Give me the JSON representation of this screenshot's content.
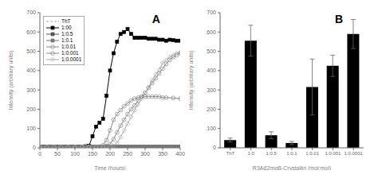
{
  "chart_data": [
    {
      "type": "line",
      "title": "A",
      "xlabel": "Time (hours)",
      "ylabel": "Intensity (arbitrary units)",
      "xlim": [
        0,
        400
      ],
      "ylim": [
        0,
        700
      ],
      "xticks": [
        0,
        50,
        100,
        150,
        200,
        250,
        300,
        350,
        400
      ],
      "yticks": [
        0,
        100,
        200,
        300,
        400,
        500,
        600,
        700
      ],
      "grid": false,
      "legend": "upper left",
      "series": [
        {
          "name": "ThT",
          "color": "#aaaaaa",
          "marker": "none",
          "line_style": "dashed",
          "x": [
            0,
            20,
            40,
            60,
            80,
            100,
            120,
            140,
            160,
            180,
            200,
            220,
            240,
            260,
            280,
            300,
            320,
            340,
            360,
            380,
            400
          ],
          "values": [
            5,
            5,
            5,
            5,
            5,
            5,
            5,
            5,
            5,
            5,
            5,
            5,
            5,
            5,
            5,
            5,
            5,
            5,
            5,
            5,
            5
          ]
        },
        {
          "name": "1:00",
          "color": "#000000",
          "marker": "square",
          "line_style": "solid",
          "x": [
            0,
            10,
            20,
            30,
            40,
            50,
            60,
            70,
            80,
            90,
            100,
            110,
            120,
            130,
            140,
            150,
            160,
            170,
            180,
            190,
            200,
            210,
            220,
            230,
            240,
            250,
            260,
            270,
            280,
            290,
            300,
            310,
            320,
            330,
            340,
            350,
            360,
            370,
            380,
            390,
            400
          ],
          "values": [
            5,
            5,
            5,
            5,
            5,
            5,
            5,
            5,
            5,
            5,
            5,
            5,
            5,
            8,
            10,
            60,
            110,
            130,
            150,
            270,
            400,
            490,
            550,
            590,
            600,
            615,
            590,
            570,
            570,
            570,
            570,
            565,
            565,
            565,
            560,
            560,
            555,
            560,
            558,
            555,
            555
          ]
        },
        {
          "name": "1:0.5",
          "color": "#555555",
          "marker": "square",
          "line_style": "solid",
          "x": [
            0,
            10,
            20,
            30,
            40,
            50,
            60,
            70,
            80,
            90,
            100,
            110,
            120,
            130,
            140,
            150,
            160,
            170,
            180,
            190,
            200,
            210,
            220,
            230,
            240,
            250,
            260,
            270,
            280,
            290,
            300,
            310,
            320,
            330,
            340,
            350,
            360,
            370,
            380,
            390,
            400
          ],
          "values": [
            5,
            5,
            5,
            5,
            5,
            5,
            5,
            5,
            5,
            5,
            5,
            5,
            5,
            5,
            5,
            5,
            5,
            5,
            5,
            5,
            5,
            5,
            5,
            5,
            5,
            5,
            5,
            5,
            5,
            5,
            5,
            5,
            5,
            5,
            5,
            5,
            5,
            5,
            5,
            5,
            5
          ]
        },
        {
          "name": "1:0.1",
          "color": "#777777",
          "marker": "square",
          "line_style": "solid",
          "x": [
            0,
            10,
            20,
            30,
            40,
            50,
            60,
            70,
            80,
            90,
            100,
            110,
            120,
            130,
            140,
            150,
            160,
            170,
            180,
            190,
            200,
            210,
            220,
            230,
            240,
            250,
            260,
            270,
            280,
            290,
            300,
            310,
            320,
            330,
            340,
            350,
            360,
            370,
            380,
            390,
            400
          ],
          "values": [
            5,
            5,
            5,
            5,
            5,
            5,
            5,
            5,
            5,
            5,
            5,
            5,
            5,
            5,
            5,
            5,
            5,
            5,
            5,
            5,
            5,
            5,
            5,
            5,
            5,
            5,
            5,
            5,
            5,
            5,
            5,
            5,
            5,
            5,
            5,
            5,
            5,
            5,
            5,
            5,
            5
          ]
        },
        {
          "name": "1:0.01",
          "color": "#888888",
          "marker": "circle_open",
          "line_style": "solid",
          "x": [
            0,
            20,
            40,
            60,
            80,
            100,
            120,
            140,
            150,
            160,
            170,
            180,
            190,
            200,
            210,
            220,
            230,
            240,
            250,
            260,
            270,
            280,
            290,
            300,
            310,
            320,
            330,
            340,
            350,
            360,
            380,
            400
          ],
          "values": [
            5,
            5,
            5,
            5,
            5,
            5,
            5,
            5,
            5,
            5,
            5,
            15,
            40,
            90,
            145,
            175,
            195,
            215,
            230,
            245,
            255,
            260,
            265,
            265,
            265,
            265,
            265,
            265,
            260,
            260,
            258,
            255
          ]
        },
        {
          "name": "1:0.001",
          "color": "#888888",
          "marker": "circle_open",
          "line_style": "solid",
          "x": [
            0,
            20,
            40,
            60,
            80,
            100,
            120,
            140,
            160,
            180,
            190,
            200,
            210,
            220,
            230,
            240,
            250,
            260,
            270,
            280,
            290,
            300,
            310,
            320,
            330,
            340,
            350,
            360,
            370,
            380,
            390,
            400
          ],
          "values": [
            5,
            5,
            5,
            5,
            5,
            5,
            5,
            5,
            5,
            5,
            10,
            20,
            45,
            80,
            115,
            145,
            175,
            200,
            220,
            245,
            265,
            285,
            310,
            335,
            360,
            385,
            410,
            435,
            455,
            470,
            480,
            490
          ]
        },
        {
          "name": "1:0.0001",
          "color": "#aaaaaa",
          "marker": "diamond_open",
          "line_style": "solid",
          "x": [
            0,
            20,
            40,
            60,
            80,
            100,
            120,
            140,
            160,
            180,
            200,
            210,
            220,
            230,
            240,
            250,
            260,
            270,
            280,
            290,
            300,
            310,
            320,
            330,
            340,
            350,
            360,
            370,
            380,
            390,
            400
          ],
          "values": [
            5,
            5,
            5,
            5,
            5,
            5,
            5,
            5,
            5,
            5,
            5,
            10,
            25,
            55,
            90,
            125,
            160,
            195,
            225,
            255,
            285,
            315,
            350,
            380,
            405,
            440,
            455,
            470,
            480,
            490,
            495
          ]
        }
      ]
    },
    {
      "type": "bar",
      "title": "B",
      "xlabel": "R3Aβ2mαB-Crystallin (mol:mol)",
      "ylabel": "Intensity (arbitrary units)",
      "categories": [
        "ThT",
        "1:0",
        "1:0.5",
        "1:0.1",
        "1:0.01",
        "1:0.001",
        "1:0.0001"
      ],
      "values": [
        40,
        555,
        65,
        25,
        315,
        425,
        590
      ],
      "errors": [
        10,
        80,
        18,
        8,
        145,
        55,
        75
      ],
      "color": "#000000",
      "ylim": [
        0,
        700
      ],
      "yticks": [
        0,
        100,
        200,
        300,
        400,
        500,
        600,
        700
      ],
      "grid": false
    }
  ]
}
